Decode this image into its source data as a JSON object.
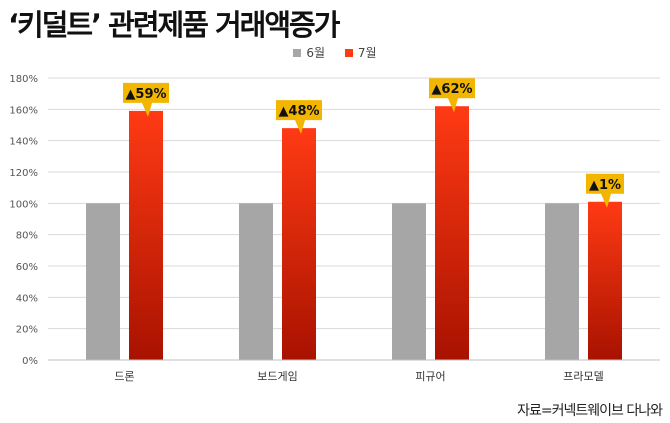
{
  "title": "‘키덜트’ 관련제품 거래액증가",
  "source": "자료=커넥트웨이브 다나와",
  "colors": {
    "june": "#a6a6a6",
    "july_top": "#ff3a14",
    "july_bottom": "#a81200",
    "callout": "#f2b600",
    "grid": "#d9d9d9"
  },
  "chart_data": {
    "type": "bar",
    "categories": [
      "드론",
      "보드게임",
      "피규어",
      "프라모델"
    ],
    "series": [
      {
        "name": "6월",
        "values": [
          100,
          100,
          100,
          100
        ]
      },
      {
        "name": "7월",
        "values": [
          159,
          148,
          162,
          101
        ]
      }
    ],
    "annotations": [
      "▲59%",
      "▲48%",
      "▲62%",
      "▲1%"
    ],
    "yticks": [
      "0%",
      "20%",
      "40%",
      "60%",
      "80%",
      "100%",
      "120%",
      "140%",
      "160%",
      "180%"
    ],
    "ylim": [
      0,
      180
    ],
    "grid": true,
    "legend_position": "top-center"
  }
}
